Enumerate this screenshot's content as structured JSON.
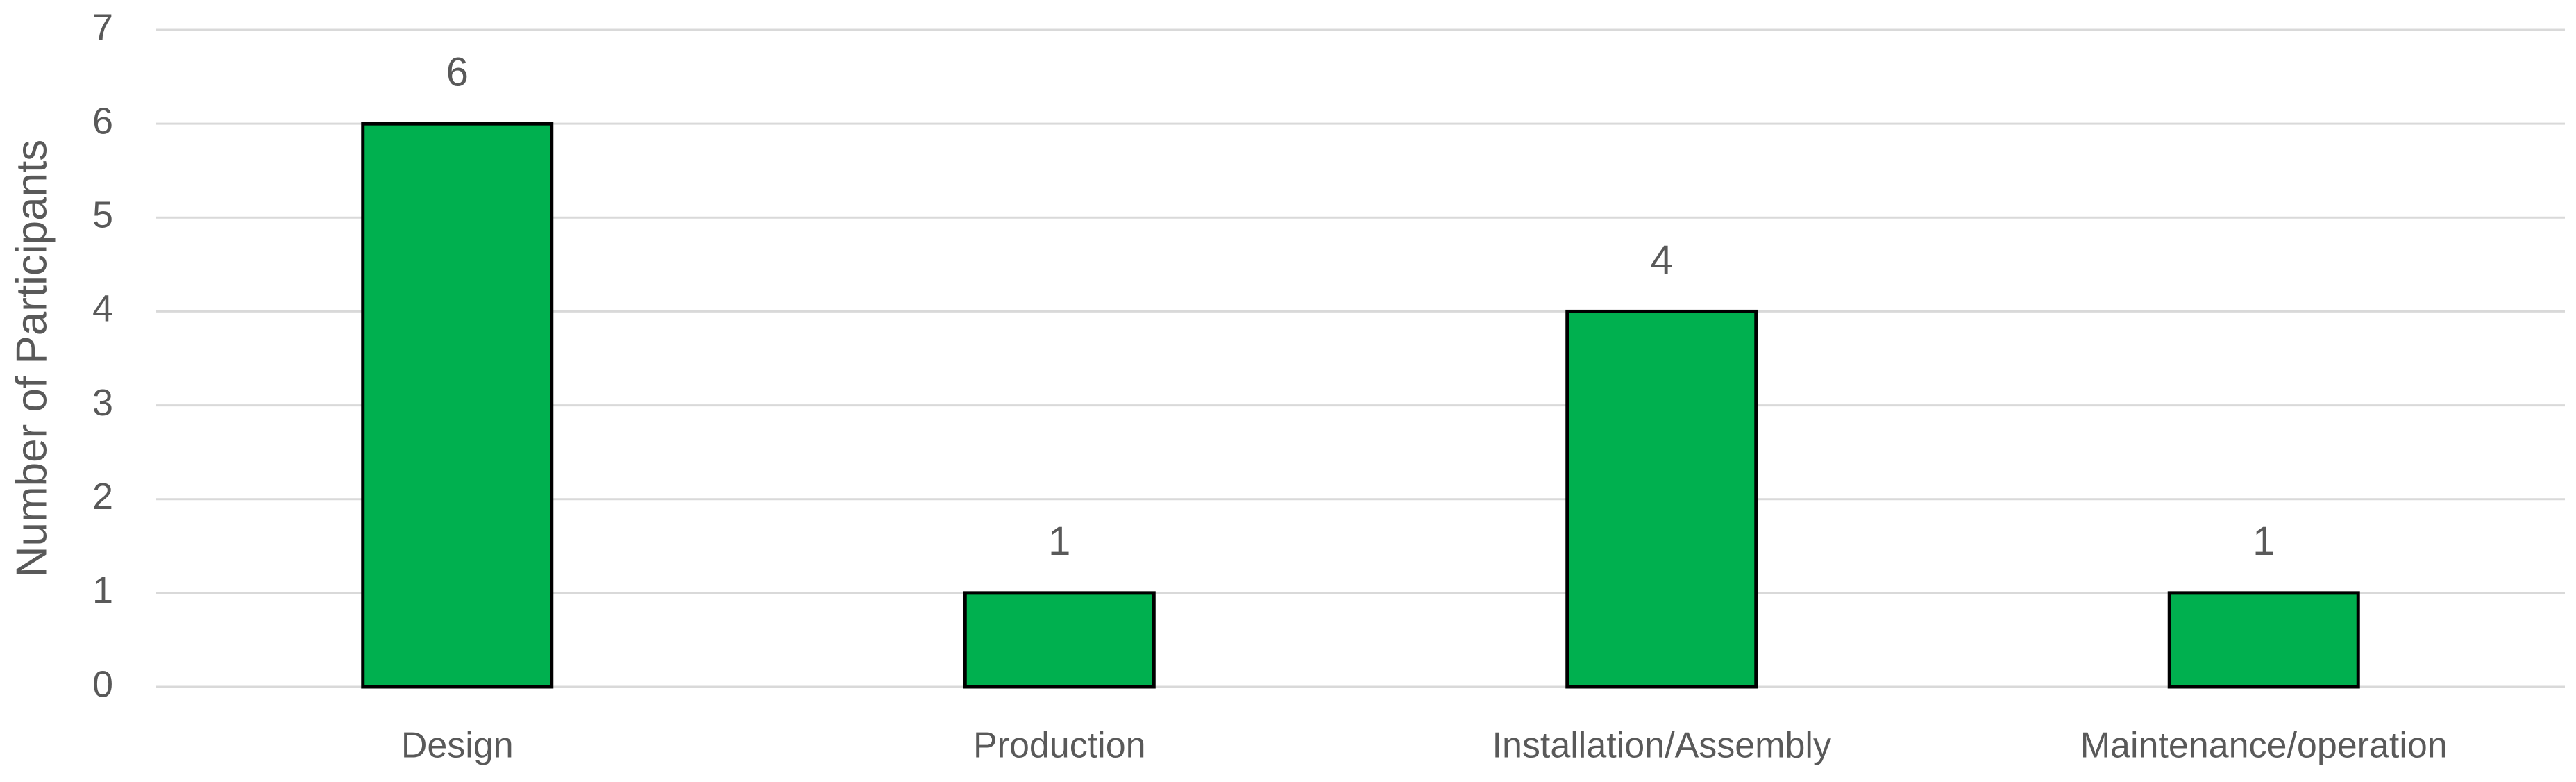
{
  "chart_data": {
    "type": "bar",
    "y_label": "Number of Participants",
    "categories": [
      "Design",
      "Production",
      "Installation/Assembly",
      "Maintenance/operation"
    ],
    "values": [
      6,
      1,
      4,
      1
    ],
    "color": "#00b04f",
    "ylim": [
      0,
      7
    ],
    "yticks": [
      0,
      1,
      2,
      3,
      4,
      5,
      6,
      7
    ],
    "grid": true,
    "data_labels": true
  }
}
